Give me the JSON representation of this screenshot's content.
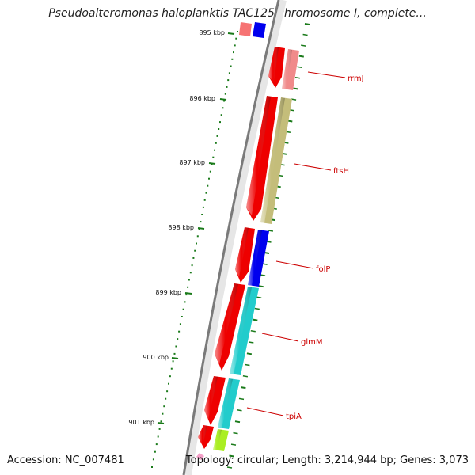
{
  "title": "Pseudoalteromonas haloplanktis TAC125 chromosome I, complete...",
  "accession": "Accession: NC_007481",
  "topology": "Topology: circular; Length: 3,214,944 bp; Genes: 3,073",
  "scale": {
    "tick_labels": [
      "895 kbp",
      "896 kbp",
      "897 kbp",
      "898 kbp",
      "899 kbp",
      "900 kbp",
      "901 kbp"
    ]
  },
  "genes": [
    {
      "name": "rrmJ"
    },
    {
      "name": "ftsH"
    },
    {
      "name": "folP"
    },
    {
      "name": "glmM"
    },
    {
      "name": "tpiA"
    }
  ],
  "colors": {
    "red": "#ee0000",
    "salmon": "#f08a8a",
    "khaki": "#c4bd7a",
    "blue": "#0000ee",
    "cyan": "#22cccc",
    "lime": "#aaee22",
    "pink": "#f4a0c8",
    "tick_green": "#1a7a1a",
    "label_red": "#cc0000"
  }
}
